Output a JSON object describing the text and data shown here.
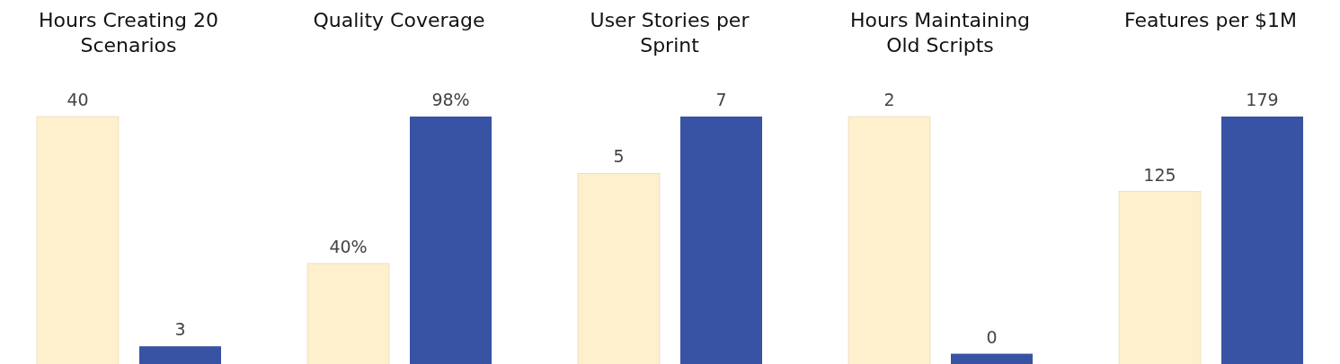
{
  "chart_data": [
    {
      "type": "bar",
      "title": "Hours Creating 20 Scenarios",
      "categories": [
        null,
        null
      ],
      "values": [
        40,
        3
      ],
      "value_labels": [
        "40",
        "3"
      ],
      "colors": [
        "#fef0cc",
        "#3852a4"
      ]
    },
    {
      "type": "bar",
      "title": "Quality Coverage",
      "categories": [
        null,
        null
      ],
      "values": [
        40,
        98
      ],
      "value_labels": [
        "40%",
        "98%"
      ],
      "colors": [
        "#fef0cc",
        "#3852a4"
      ]
    },
    {
      "type": "bar",
      "title": "User Stories per Sprint",
      "categories": [
        null,
        null
      ],
      "values": [
        5.4,
        7
      ],
      "value_labels": [
        "5",
        "7"
      ],
      "colors": [
        "#fef0cc",
        "#3852a4"
      ]
    },
    {
      "type": "bar",
      "title": "Hours Maintaining Old Scripts",
      "categories": [
        null,
        null
      ],
      "values": [
        2,
        0.09
      ],
      "value_labels": [
        "2",
        "0"
      ],
      "colors": [
        "#fef0cc",
        "#3852a4"
      ]
    },
    {
      "type": "bar",
      "title": "Features per $1M",
      "categories": [
        null,
        null
      ],
      "values": [
        125,
        179
      ],
      "value_labels": [
        "125",
        "179"
      ],
      "colors": [
        "#fef0cc",
        "#3852a4"
      ]
    }
  ]
}
